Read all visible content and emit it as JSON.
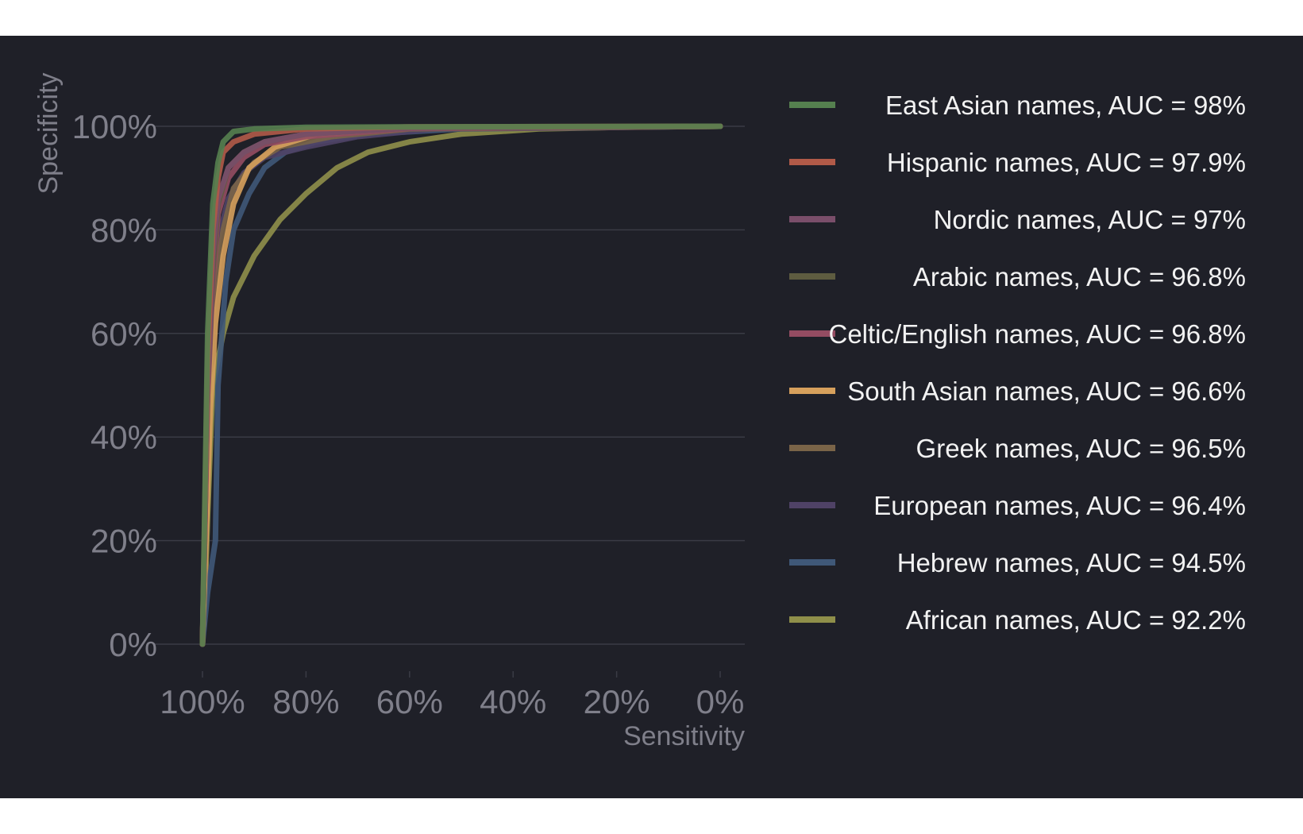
{
  "chart_data": {
    "type": "line",
    "xlabel": "Sensitivity",
    "ylabel": "Specificity",
    "x_ticks": [
      "100%",
      "80%",
      "60%",
      "40%",
      "20%",
      "0%"
    ],
    "y_ticks": [
      "0%",
      "20%",
      "40%",
      "60%",
      "80%",
      "100%"
    ],
    "xlim": [
      1,
      0
    ],
    "ylim": [
      0,
      1
    ],
    "x_reversed": true,
    "grid": "horizontal",
    "legend_position": "right",
    "background": "#1f2028",
    "series": [
      {
        "name": "East Asian names, AUC = 98%",
        "color": "#55804f",
        "points": [
          [
            1.0,
            0.0
          ],
          [
            0.99,
            0.6
          ],
          [
            0.98,
            0.85
          ],
          [
            0.97,
            0.93
          ],
          [
            0.96,
            0.97
          ],
          [
            0.94,
            0.99
          ],
          [
            0.9,
            0.995
          ],
          [
            0.8,
            0.998
          ],
          [
            0.6,
            0.999
          ],
          [
            0.0,
            1.0
          ]
        ]
      },
      {
        "name": "Hispanic names, AUC = 97.9%",
        "color": "#b15a48",
        "points": [
          [
            1.0,
            0.0
          ],
          [
            0.99,
            0.55
          ],
          [
            0.98,
            0.8
          ],
          [
            0.97,
            0.9
          ],
          [
            0.96,
            0.95
          ],
          [
            0.94,
            0.97
          ],
          [
            0.9,
            0.985
          ],
          [
            0.8,
            0.995
          ],
          [
            0.6,
            0.999
          ],
          [
            0.0,
            1.0
          ]
        ]
      },
      {
        "name": "Nordic names, AUC = 97%",
        "color": "#7a4e6a",
        "points": [
          [
            1.0,
            0.0
          ],
          [
            0.99,
            0.5
          ],
          [
            0.98,
            0.75
          ],
          [
            0.97,
            0.86
          ],
          [
            0.95,
            0.92
          ],
          [
            0.92,
            0.95
          ],
          [
            0.88,
            0.97
          ],
          [
            0.8,
            0.985
          ],
          [
            0.6,
            0.997
          ],
          [
            0.0,
            1.0
          ]
        ]
      },
      {
        "name": "Arabic names, AUC = 96.8%",
        "color": "#5e5c40",
        "points": [
          [
            1.0,
            0.0
          ],
          [
            0.99,
            0.5
          ],
          [
            0.98,
            0.72
          ],
          [
            0.97,
            0.85
          ],
          [
            0.95,
            0.92
          ],
          [
            0.92,
            0.95
          ],
          [
            0.88,
            0.97
          ],
          [
            0.8,
            0.985
          ],
          [
            0.6,
            0.997
          ],
          [
            0.0,
            1.0
          ]
        ]
      },
      {
        "name": "Celtic/English names, AUC = 96.8%",
        "color": "#944c62",
        "points": [
          [
            1.0,
            0.0
          ],
          [
            0.99,
            0.48
          ],
          [
            0.98,
            0.7
          ],
          [
            0.97,
            0.83
          ],
          [
            0.95,
            0.9
          ],
          [
            0.92,
            0.94
          ],
          [
            0.88,
            0.965
          ],
          [
            0.8,
            0.98
          ],
          [
            0.6,
            0.996
          ],
          [
            0.0,
            1.0
          ]
        ]
      },
      {
        "name": "South Asian names, AUC = 96.6%",
        "color": "#d6a05c",
        "points": [
          [
            1.0,
            0.0
          ],
          [
            0.985,
            0.45
          ],
          [
            0.975,
            0.62
          ],
          [
            0.96,
            0.75
          ],
          [
            0.94,
            0.85
          ],
          [
            0.91,
            0.92
          ],
          [
            0.86,
            0.96
          ],
          [
            0.78,
            0.985
          ],
          [
            0.6,
            0.997
          ],
          [
            0.0,
            1.0
          ]
        ]
      },
      {
        "name": "Greek names, AUC = 96.5%",
        "color": "#7a6448",
        "points": [
          [
            1.0,
            0.0
          ],
          [
            0.99,
            0.45
          ],
          [
            0.98,
            0.65
          ],
          [
            0.96,
            0.8
          ],
          [
            0.94,
            0.88
          ],
          [
            0.9,
            0.93
          ],
          [
            0.85,
            0.96
          ],
          [
            0.75,
            0.98
          ],
          [
            0.6,
            0.995
          ],
          [
            0.0,
            1.0
          ]
        ]
      },
      {
        "name": "European names, AUC = 96.4%",
        "color": "#4f4266",
        "points": [
          [
            1.0,
            0.0
          ],
          [
            0.99,
            0.45
          ],
          [
            0.98,
            0.66
          ],
          [
            0.97,
            0.78
          ],
          [
            0.95,
            0.86
          ],
          [
            0.92,
            0.91
          ],
          [
            0.88,
            0.94
          ],
          [
            0.8,
            0.96
          ],
          [
            0.7,
            0.98
          ],
          [
            0.55,
            0.995
          ],
          [
            0.0,
            1.0
          ]
        ]
      },
      {
        "name": "Hebrew names, AUC = 94.5%",
        "color": "#3f5878",
        "points": [
          [
            1.0,
            0.0
          ],
          [
            0.99,
            0.1
          ],
          [
            0.975,
            0.2
          ],
          [
            0.97,
            0.5
          ],
          [
            0.955,
            0.7
          ],
          [
            0.94,
            0.8
          ],
          [
            0.91,
            0.87
          ],
          [
            0.88,
            0.92
          ],
          [
            0.84,
            0.95
          ],
          [
            0.78,
            0.97
          ],
          [
            0.68,
            0.985
          ],
          [
            0.5,
            0.995
          ],
          [
            0.0,
            1.0
          ]
        ]
      },
      {
        "name": "African names, AUC = 92.2%",
        "color": "#8f8f4a",
        "points": [
          [
            1.0,
            0.0
          ],
          [
            0.995,
            0.1
          ],
          [
            0.99,
            0.25
          ],
          [
            0.98,
            0.5
          ],
          [
            0.96,
            0.6
          ],
          [
            0.94,
            0.67
          ],
          [
            0.9,
            0.75
          ],
          [
            0.85,
            0.82
          ],
          [
            0.8,
            0.87
          ],
          [
            0.74,
            0.92
          ],
          [
            0.68,
            0.95
          ],
          [
            0.6,
            0.97
          ],
          [
            0.5,
            0.985
          ],
          [
            0.35,
            0.995
          ],
          [
            0.2,
            0.998
          ],
          [
            0.0,
            1.0
          ]
        ]
      }
    ]
  }
}
